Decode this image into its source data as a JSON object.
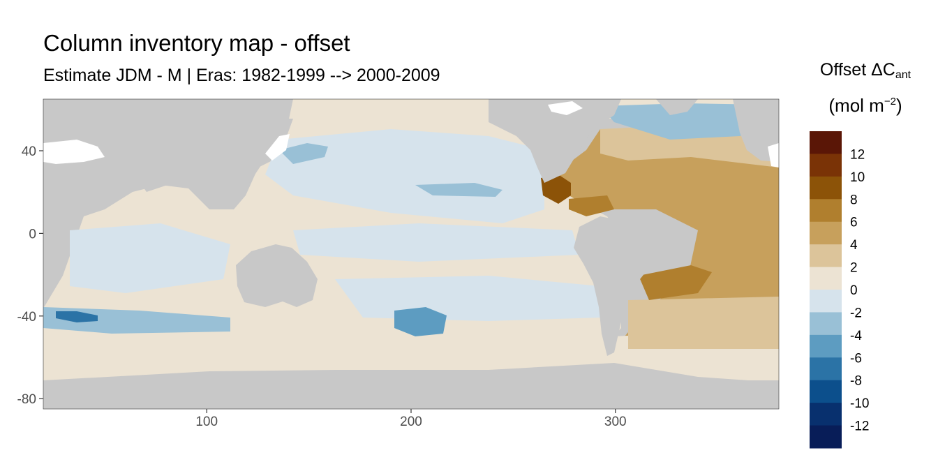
{
  "title": "Column inventory map - offset",
  "subtitle": "Estimate JDM - M | Eras: 1982-1999 --> 2000-2009",
  "legend": {
    "title_main": "Offset ΔC",
    "title_sub": "ant",
    "unit_main": "(mol m",
    "unit_sup": "−2",
    "unit_close": ")"
  },
  "chart_data": {
    "type": "heatmap",
    "title": "Column inventory map - offset",
    "subtitle": "Estimate JDM - M | Eras: 1982-1999 --> 2000-2009",
    "xlabel": "",
    "ylabel": "",
    "xlim": [
      20,
      380
    ],
    "ylim": [
      -85,
      65
    ],
    "x_ticks": [
      100,
      200,
      300
    ],
    "y_ticks": [
      40,
      0,
      -40,
      -80
    ],
    "grid": false,
    "land_color": "#c8c8c8",
    "missing_color": "#ffffff",
    "legend_position": "right",
    "legend_breaks": [
      12,
      10,
      8,
      6,
      4,
      2,
      0,
      -2,
      -4,
      -6,
      -8,
      -10,
      -12
    ],
    "color_bins": [
      {
        "range": [
          12,
          14
        ],
        "color": "#5a1606"
      },
      {
        "range": [
          10,
          12
        ],
        "color": "#7a3306"
      },
      {
        "range": [
          8,
          10
        ],
        "color": "#8c5308"
      },
      {
        "range": [
          6,
          8
        ],
        "color": "#b07f2e"
      },
      {
        "range": [
          4,
          6
        ],
        "color": "#c7a05c"
      },
      {
        "range": [
          2,
          4
        ],
        "color": "#dcc49a"
      },
      {
        "range": [
          0,
          2
        ],
        "color": "#ece3d3"
      },
      {
        "range": [
          -2,
          0
        ],
        "color": "#d6e3ec"
      },
      {
        "range": [
          -4,
          -2
        ],
        "color": "#99c0d6"
      },
      {
        "range": [
          -6,
          -4
        ],
        "color": "#5d9cc1"
      },
      {
        "range": [
          -8,
          -6
        ],
        "color": "#2b73a6"
      },
      {
        "range": [
          -10,
          -8
        ],
        "color": "#0c4f8c"
      },
      {
        "range": [
          -12,
          -10
        ],
        "color": "#08306e"
      },
      {
        "range": [
          -14,
          -12
        ],
        "color": "#081d58"
      }
    ]
  }
}
